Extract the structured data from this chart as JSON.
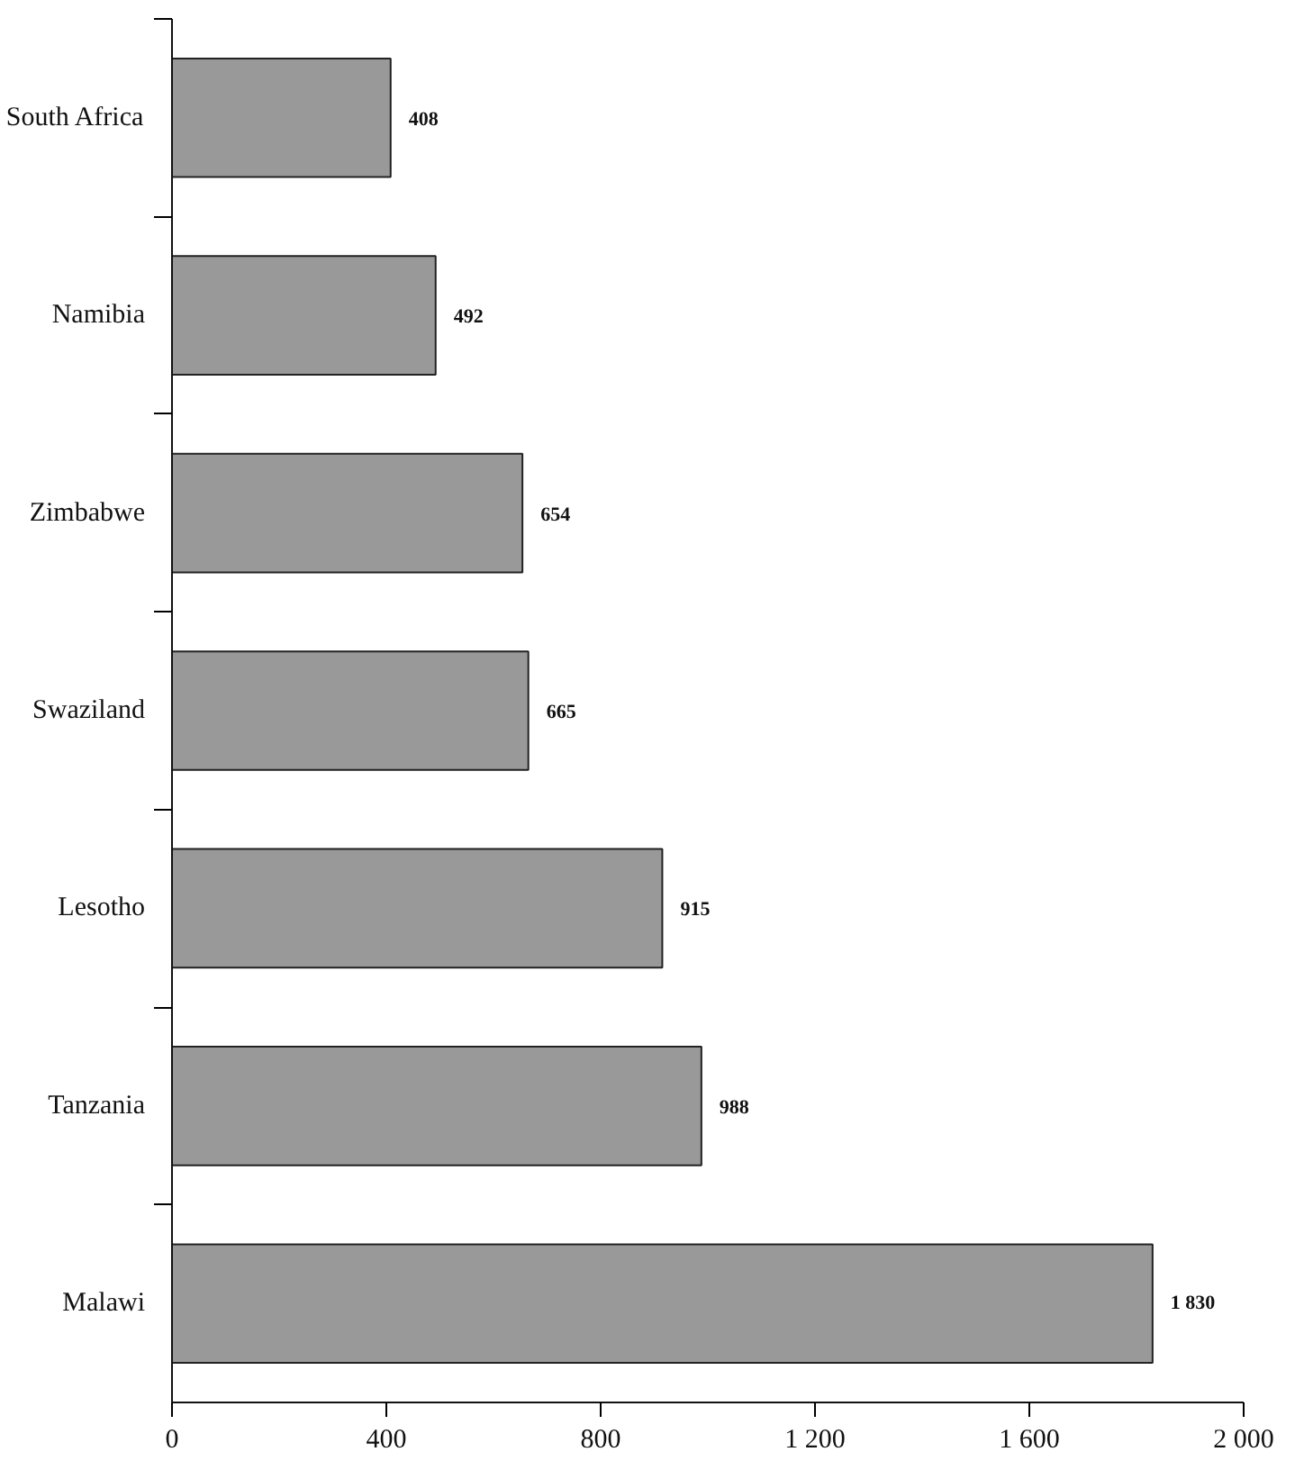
{
  "chart_data": {
    "type": "bar",
    "orientation": "horizontal",
    "categories": [
      "South Africa",
      "Namibia",
      "Zimbabwe",
      "Swaziland",
      "Lesotho",
      "Tanzania",
      "Malawi"
    ],
    "values": [
      408,
      492,
      654,
      665,
      915,
      988,
      1830
    ],
    "value_labels": [
      "408",
      "492",
      "654",
      "665",
      "915",
      "988",
      "1 830"
    ],
    "color": "#999999",
    "xlim": [
      0,
      2000
    ],
    "xticks": [
      0,
      400,
      800,
      {
        "value": 1200,
        "label": "1 200"
      },
      {
        "value": 1600,
        "label": "1 600"
      },
      {
        "value": 2000,
        "label": "2 000"
      }
    ],
    "grid": false
  }
}
